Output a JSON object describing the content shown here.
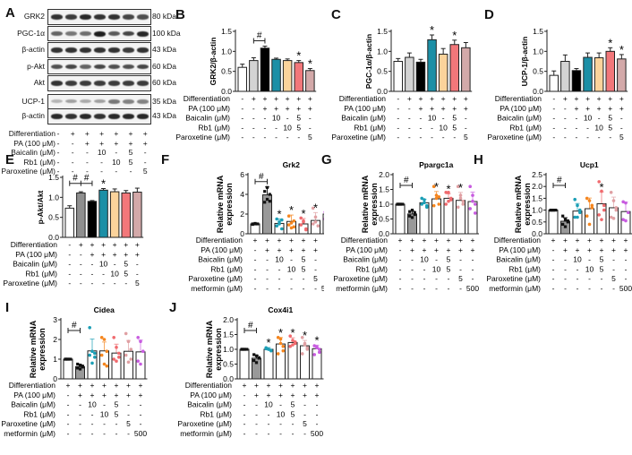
{
  "colors": {
    "g1": "#ffffff",
    "g2": "#d3d3d3",
    "g3": "#000000",
    "g4": "#1c8fa6",
    "g5": "#fbd39b",
    "g6": "#f2777a",
    "g7": "#d3a9a9",
    "mrna_pa": "#999999",
    "dot_baicalin": "#1c9fb6",
    "dot_rb1": "#f5861f",
    "dot_combo": "#f06a6e",
    "dot_parox": "#e0a0a3",
    "dot_metformin": "#c85ce0",
    "e_pa": "#8f8f8f"
  },
  "panelA": {
    "label": "A",
    "blots": [
      {
        "name": "GRK2",
        "kda": "80 kDa",
        "intensity": [
          0.85,
          0.8,
          0.9,
          0.85,
          0.85,
          0.75,
          0.7
        ]
      },
      {
        "name": "PGC-1α",
        "kda": "100 kDa",
        "intensity": [
          0.6,
          0.5,
          0.55,
          0.95,
          0.65,
          0.75,
          0.9
        ]
      },
      {
        "name": "β-actin",
        "kda": "43 kDa",
        "intensity": [
          0.85,
          0.85,
          0.85,
          0.85,
          0.85,
          0.8,
          0.85
        ]
      },
      {
        "name": "p-Akt",
        "kda": "60 kDa",
        "intensity": [
          0.7,
          0.75,
          0.6,
          0.75,
          0.7,
          0.7,
          0.75
        ]
      },
      {
        "name": "Akt",
        "kda": "60 kDa",
        "intensity": [
          0.85,
          0.8,
          0.8,
          0.8,
          0.8,
          0.8,
          0.8
        ]
      },
      {
        "name": "UCP-1",
        "kda": "35 kDa",
        "intensity": [
          0.2,
          0.3,
          0.25,
          0.3,
          0.5,
          0.45,
          0.45
        ]
      },
      {
        "name": "β-actin",
        "kda": "43 kDa",
        "intensity": [
          0.9,
          0.85,
          0.9,
          0.85,
          0.9,
          0.9,
          0.9
        ]
      }
    ],
    "conditions": [
      {
        "label": "Differentiation",
        "values": [
          "-",
          "+",
          "+",
          "+",
          "+",
          "+",
          "+"
        ]
      },
      {
        "label": "PA (100 μM)",
        "values": [
          "-",
          "-",
          "+",
          "+",
          "+",
          "+",
          "+"
        ]
      },
      {
        "label": "Baicalin (μM)",
        "values": [
          "-",
          "-",
          "-",
          "10",
          "-",
          "5",
          "-"
        ]
      },
      {
        "label": "Rb1 (μM)",
        "values": [
          "-",
          "-",
          "-",
          "-",
          "10",
          "5",
          "-"
        ]
      },
      {
        "label": "Paroxetine (μM)",
        "values": [
          "-",
          "-",
          "-",
          "-",
          "-",
          "-",
          "5"
        ]
      }
    ]
  },
  "conditions_protein": [
    {
      "label": "Differentiation",
      "values": [
        "-",
        "+",
        "+",
        "+",
        "+",
        "+",
        "+"
      ]
    },
    {
      "label": "PA (100 μM)",
      "values": [
        "-",
        "-",
        "+",
        "+",
        "+",
        "+",
        "+"
      ]
    },
    {
      "label": "Baicalin (μM)",
      "values": [
        "-",
        "-",
        "-",
        "10",
        "-",
        "5",
        "-"
      ]
    },
    {
      "label": "Rb1 (μM)",
      "values": [
        "-",
        "-",
        "-",
        "-",
        "10",
        "5",
        "-"
      ]
    },
    {
      "label": "Paroxetine (μM)",
      "values": [
        "-",
        "-",
        "-",
        "-",
        "-",
        "-",
        "5"
      ]
    }
  ],
  "conditions_mrna": [
    {
      "label": "Differentiation",
      "values": [
        "+",
        "+",
        "+",
        "+",
        "+",
        "+",
        "+"
      ]
    },
    {
      "label": "PA (100 μM)",
      "values": [
        "-",
        "+",
        "+",
        "+",
        "+",
        "+",
        "+"
      ]
    },
    {
      "label": "Baicalin (μM)",
      "values": [
        "-",
        "-",
        "10",
        "-",
        "5",
        "-",
        "-"
      ]
    },
    {
      "label": "Rb1 (μM)",
      "values": [
        "-",
        "-",
        "-",
        "10",
        "5",
        "-",
        "-"
      ]
    },
    {
      "label": "Paroxetine (μM)",
      "values": [
        "-",
        "-",
        "-",
        "-",
        "-",
        "5",
        "-"
      ]
    },
    {
      "label": "metformin (μM)",
      "values": [
        "-",
        "-",
        "-",
        "-",
        "-",
        "-",
        "500"
      ]
    }
  ],
  "chart_data": [
    {
      "panel": "B",
      "type": "bar",
      "title": "",
      "ylabel": "GRK2/β-actin",
      "ylim": [
        0,
        1.5
      ],
      "yticks": [
        "0.0",
        "0.5",
        "1.0",
        "1.5"
      ],
      "ytick_vals": [
        0,
        0.5,
        1.0,
        1.5
      ],
      "values": [
        0.6,
        0.77,
        1.08,
        0.8,
        0.77,
        0.72,
        0.52
      ],
      "errors": [
        0.08,
        0.07,
        0.05,
        0.03,
        0.04,
        0.05,
        0.05
      ],
      "markers": [
        "",
        "",
        "",
        "",
        "",
        "*",
        "*"
      ],
      "bracket": {
        "from": 1,
        "to": 2,
        "symbol": "#"
      },
      "scatter": false
    },
    {
      "panel": "C",
      "type": "bar",
      "title": "",
      "ylabel": "PGC-1α/β-actin",
      "ylim": [
        0,
        1.5
      ],
      "yticks": [
        "0.0",
        "0.5",
        "1.0",
        "1.5"
      ],
      "ytick_vals": [
        0,
        0.5,
        1.0,
        1.5
      ],
      "values": [
        0.75,
        0.85,
        0.73,
        1.29,
        0.93,
        1.17,
        1.09
      ],
      "errors": [
        0.07,
        0.11,
        0.07,
        0.12,
        0.14,
        0.11,
        0.13
      ],
      "markers": [
        "",
        "",
        "",
        "*",
        "",
        "*",
        ""
      ],
      "bracket": null,
      "scatter": false
    },
    {
      "panel": "D",
      "type": "bar",
      "title": "",
      "ylabel": "UCP-1/β-actin",
      "ylim": [
        0,
        1.5
      ],
      "yticks": [
        "0.0",
        "0.5",
        "1.0",
        "1.5"
      ],
      "ytick_vals": [
        0,
        0.5,
        1.0,
        1.5
      ],
      "values": [
        0.4,
        0.75,
        0.52,
        0.85,
        0.84,
        1.0,
        0.81
      ],
      "errors": [
        0.11,
        0.16,
        0.05,
        0.11,
        0.12,
        0.09,
        0.11
      ],
      "markers": [
        "",
        "",
        "",
        "",
        "",
        "*",
        "*"
      ],
      "bracket": null,
      "scatter": false
    },
    {
      "panel": "E",
      "type": "bar",
      "title": "",
      "ylabel": "p-Akt/Akt",
      "ylim": [
        0,
        1.5
      ],
      "yticks": [
        "0.0",
        "0.5",
        "1.0",
        "1.5"
      ],
      "ytick_vals": [
        0,
        0.5,
        1.0,
        1.5
      ],
      "values": [
        0.73,
        1.11,
        0.9,
        1.18,
        1.14,
        1.11,
        1.13
      ],
      "errors": [
        0.06,
        0.03,
        0.02,
        0.04,
        0.07,
        0.06,
        0.1
      ],
      "markers": [
        "",
        "",
        "",
        "*",
        "",
        "",
        ""
      ],
      "bracket": {
        "from": 0,
        "to": 2,
        "symbol": "#",
        "double": true
      },
      "scatter": false
    },
    {
      "panel": "F",
      "type": "bar",
      "title": "Grk2",
      "ylabel": "Relative mRNA expression",
      "ylim": [
        0,
        6
      ],
      "yticks": [
        "0",
        "2",
        "4",
        "6"
      ],
      "ytick_vals": [
        0,
        2,
        4,
        6
      ],
      "values": [
        1.0,
        3.95,
        1.05,
        1.25,
        1.0,
        1.35,
        2.0
      ],
      "errors": [
        0.05,
        0.8,
        0.45,
        0.65,
        0.55,
        0.8,
        0.5
      ],
      "points": [
        [
          1.0,
          1.0,
          1.0,
          0.95,
          1.05
        ],
        [
          3.2,
          3.5,
          4.0,
          4.3,
          4.7,
          3.3
        ],
        [
          1.5,
          1.2,
          0.5,
          0.8,
          1.0,
          1.4
        ],
        [
          0.9,
          0.6,
          1.3,
          1.8,
          1.1,
          0.7
        ],
        [
          1.6,
          1.2,
          0.5,
          0.9,
          1.3,
          0.4
        ],
        [
          1.0,
          1.7,
          0.8,
          2.6,
          1.2
        ],
        [
          2.2,
          2.6,
          1.8,
          1.5,
          1.9,
          2.4
        ]
      ],
      "markers": [
        "",
        "",
        "*",
        "*",
        "*",
        "*",
        "*"
      ],
      "bracket": {
        "from": 0,
        "to": 1,
        "symbol": "#"
      },
      "scatter": true
    },
    {
      "panel": "G",
      "type": "bar",
      "title": "Ppargc1a",
      "ylabel": "Relative mRNA expression",
      "ylim": [
        0,
        2.0
      ],
      "yticks": [
        "0.0",
        "0.5",
        "1.0",
        "1.5",
        "2.0"
      ],
      "ytick_vals": [
        0,
        0.5,
        1.0,
        1.5,
        2.0
      ],
      "values": [
        1.0,
        0.67,
        1.05,
        1.18,
        1.2,
        1.13,
        1.09
      ],
      "errors": [
        0.02,
        0.1,
        0.12,
        0.25,
        0.15,
        0.27,
        0.32
      ],
      "points": [
        [
          1.0,
          1.0,
          1.0,
          1.0,
          1.0
        ],
        [
          0.75,
          0.8,
          0.65,
          0.6,
          0.55,
          0.72
        ],
        [
          1.2,
          1.05,
          0.9,
          1.0,
          1.15,
          0.95
        ],
        [
          1.6,
          1.3,
          1.0,
          0.95,
          1.2,
          1.25
        ],
        [
          1.4,
          1.4,
          1.15,
          1.0,
          1.1,
          1.2
        ],
        [
          1.6,
          1.3,
          1.0,
          0.9,
          1.2,
          1.1
        ],
        [
          1.6,
          1.3,
          1.0,
          0.85,
          1.1,
          0.7
        ]
      ],
      "markers": [
        "",
        "",
        "",
        "*",
        "*",
        "*",
        ""
      ],
      "bracket": {
        "from": 0,
        "to": 1,
        "symbol": "#"
      },
      "scatter": true
    },
    {
      "panel": "H",
      "type": "bar",
      "title": "Ucp1",
      "ylabel": "Relative mRNA expression",
      "ylim": [
        0,
        2.5
      ],
      "yticks": [
        "0.0",
        "0.5",
        "1.0",
        "1.5",
        "2.0",
        "2.5"
      ],
      "ytick_vals": [
        0,
        0.5,
        1.0,
        1.5,
        2.0,
        2.5
      ],
      "values": [
        1.0,
        0.53,
        0.96,
        1.06,
        1.27,
        1.1,
        0.94
      ],
      "errors": [
        0.02,
        0.15,
        0.32,
        0.45,
        0.5,
        0.45,
        0.4
      ],
      "points": [
        [
          1.0,
          1.0,
          1.0,
          1.0,
          1.0
        ],
        [
          0.75,
          0.6,
          0.5,
          0.4,
          0.3,
          0.55
        ],
        [
          1.45,
          1.2,
          0.9,
          0.7,
          0.7,
          1.0
        ],
        [
          1.5,
          1.4,
          1.1,
          0.75,
          0.4,
          1.2
        ],
        [
          2.2,
          1.8,
          1.2,
          0.8,
          0.6,
          1.0
        ],
        [
          1.75,
          1.4,
          1.1,
          0.7,
          0.65,
          1.0
        ],
        [
          1.35,
          1.3,
          0.9,
          0.6,
          0.55
        ]
      ],
      "markers": [
        "",
        "",
        "",
        "",
        "*",
        "",
        ""
      ],
      "bracket": {
        "from": 0,
        "to": 1,
        "symbol": "#"
      },
      "scatter": true
    },
    {
      "panel": "I",
      "type": "bar",
      "title": "Cidea",
      "ylabel": "Relative mRNA expression",
      "ylim": [
        0,
        3
      ],
      "yticks": [
        "0",
        "1",
        "2",
        "3"
      ],
      "ytick_vals": [
        0,
        1,
        2,
        3
      ],
      "values": [
        1.0,
        0.62,
        1.42,
        1.42,
        1.31,
        1.4,
        1.37
      ],
      "errors": [
        0.03,
        0.1,
        0.6,
        0.45,
        0.45,
        0.55,
        0.6
      ],
      "points": [
        [
          1.0,
          1.0,
          1.0,
          1.0,
          1.0
        ],
        [
          0.75,
          0.7,
          0.6,
          0.55,
          0.5,
          0.65
        ],
        [
          2.6,
          1.4,
          1.3,
          1.2,
          0.8,
          1.1
        ],
        [
          2.1,
          2.0,
          1.4,
          1.2,
          0.75,
          0.65
        ],
        [
          2.1,
          1.6,
          1.3,
          1.0,
          0.9,
          1.1
        ],
        [
          2.3,
          1.9,
          1.5,
          1.2,
          0.85,
          1.0
        ],
        [
          2.1,
          1.9,
          1.4,
          0.9,
          0.75
        ]
      ],
      "markers": [
        "",
        "",
        "",
        "",
        "",
        "",
        ""
      ],
      "bracket": {
        "from": 0,
        "to": 1,
        "symbol": "#"
      },
      "scatter": true
    },
    {
      "panel": "J",
      "type": "bar",
      "title": "Cox4i1",
      "ylabel": "Relative mRNA expression",
      "ylim": [
        0,
        2.0
      ],
      "yticks": [
        "0.0",
        "0.5",
        "1.0",
        "1.5",
        "2.0"
      ],
      "ytick_vals": [
        0,
        0.5,
        1.0,
        1.5,
        2.0
      ],
      "values": [
        1.0,
        0.7,
        1.0,
        1.18,
        1.23,
        1.12,
        1.02
      ],
      "errors": [
        0.02,
        0.1,
        0.06,
        0.22,
        0.16,
        0.18,
        0.12
      ],
      "points": [
        [
          1.0,
          1.0,
          1.0,
          1.0,
          1.0
        ],
        [
          0.82,
          0.78,
          0.7,
          0.62,
          0.55,
          0.72
        ],
        [
          1.05,
          1.0,
          0.95,
          1.02,
          1.0,
          0.97
        ],
        [
          1.4,
          1.35,
          1.1,
          0.85,
          1.2,
          0.95
        ],
        [
          1.45,
          1.3,
          1.2,
          1.1,
          1.15,
          1.25
        ],
        [
          1.4,
          1.2,
          1.0,
          0.85,
          1.15,
          1.05
        ],
        [
          1.12,
          1.08,
          0.9,
          0.82,
          1.05,
          1.0
        ]
      ],
      "markers": [
        "",
        "",
        "*",
        "*",
        "*",
        "*",
        "*"
      ],
      "bracket": {
        "from": 0,
        "to": 1,
        "symbol": "#"
      },
      "scatter": true
    }
  ]
}
